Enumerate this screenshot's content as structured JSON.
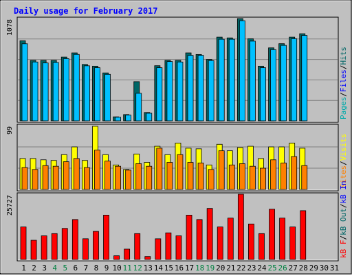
{
  "chart_data": {
    "type": "bar",
    "title": "Daily usage for February 2017",
    "colors": {
      "title": "#0000ff",
      "frame_bg": "#c0c0c0",
      "pages": "#00aaaa",
      "files": "#0000ff",
      "hits": "#006666",
      "visits": "#ffff00",
      "sites": "#ff8000",
      "kb_in": "#0000ff",
      "kb_out": "#006666",
      "kb_f": "#ff0000",
      "weekend_label": "#008040",
      "weekday_label": "#000000"
    },
    "x": {
      "labels": [
        "1",
        "2",
        "3",
        "4",
        "5",
        "6",
        "7",
        "8",
        "9",
        "10",
        "11",
        "12",
        "13",
        "14",
        "15",
        "16",
        "17",
        "18",
        "19",
        "20",
        "21",
        "22",
        "23",
        "24",
        "25",
        "26",
        "27",
        "28",
        "29",
        "30",
        "31"
      ],
      "weekend_days": [
        "4",
        "5",
        "11",
        "12",
        "18",
        "19",
        "25",
        "26"
      ]
    },
    "panels": [
      {
        "name": "hits_files_pages",
        "ymax_label": "1078",
        "ylim": [
          0,
          1078
        ],
        "legend": [
          "Pages",
          "/",
          "Files",
          "/",
          "Hits"
        ],
        "series": [
          {
            "name": "Hits",
            "values": [
              844,
              637,
              637,
              637,
              672,
              716,
              594,
              576,
              505,
              42,
              66,
              413,
              88,
              581,
              637,
              637,
              716,
              699,
              647,
              882,
              874,
              1078,
              865,
              576,
              769,
              813,
              882,
              918
            ]
          },
          {
            "name": "Files",
            "values": [
              812,
              620,
              610,
              615,
              655,
              700,
              580,
              560,
              490,
              38,
              60,
              290,
              80,
              560,
              625,
              620,
              690,
              690,
              635,
              860,
              860,
              1055,
              840,
              560,
              750,
              795,
              865,
              900
            ]
          }
        ]
      },
      {
        "name": "visits_sites",
        "ymax_label": "99",
        "ylim": [
          0,
          99
        ],
        "legend": [
          "Sites",
          "/",
          "Visits"
        ],
        "series": [
          {
            "name": "Visits",
            "values": [
              48,
              48,
              46,
              45,
              54,
              66,
              45,
              98,
              54,
              38,
              31,
              55,
              42,
              67,
              54,
              72,
              64,
              63,
              38,
              70,
              60,
              65,
              67,
              48,
              66,
              66,
              72,
              64
            ]
          },
          {
            "name": "Sites",
            "values": [
              34,
              31,
              37,
              36,
              43,
              48,
              34,
              61,
              44,
              36,
              30,
              40,
              36,
              64,
              42,
              54,
              42,
              41,
              31,
              60,
              38,
              40,
              36,
              33,
              46,
              41,
              51,
              37
            ]
          }
        ]
      },
      {
        "name": "kbytes",
        "ymax_label": "25727",
        "ylim": [
          0,
          25727
        ],
        "legend": [
          "kB F",
          "/",
          "kB Out",
          "/",
          "kB In"
        ],
        "series": [
          {
            "name": "kB F",
            "values": [
              12830,
              7580,
              9330,
              10210,
              12250,
              15750,
              8170,
              11080,
              17500,
              1460,
              4080,
              10210,
              1170,
              8160,
              10500,
              9330,
              17500,
              15750,
              20130,
              12830,
              16330,
              25727,
              14000,
              10210,
              19830,
              16330,
              12830,
              19250
            ]
          }
        ]
      }
    ]
  }
}
